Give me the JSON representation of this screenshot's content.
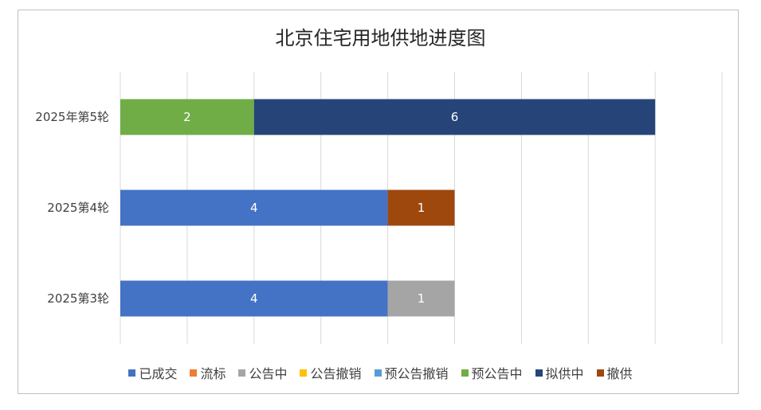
{
  "chart_data": {
    "type": "bar",
    "orientation": "horizontal",
    "stacked": true,
    "title": "北京住宅用地供地进度图",
    "categories": [
      "2025第3轮",
      "2025第4轮",
      "2025年第5轮"
    ],
    "series": [
      {
        "name": "已成交",
        "color": "#4472C4",
        "values": [
          4,
          4,
          0
        ]
      },
      {
        "name": "流标",
        "color": "#ED7D31",
        "values": [
          0,
          0,
          0
        ]
      },
      {
        "name": "公告中",
        "color": "#A5A5A5",
        "values": [
          1,
          0,
          0
        ]
      },
      {
        "name": "公告撤销",
        "color": "#FFC000",
        "values": [
          0,
          0,
          0
        ]
      },
      {
        "name": "预公告撤销",
        "color": "#5B9BD5",
        "values": [
          0,
          0,
          0
        ]
      },
      {
        "name": "预公告中",
        "color": "#70AD47",
        "values": [
          0,
          0,
          2
        ]
      },
      {
        "name": "拟供中",
        "color": "#264478",
        "values": [
          0,
          0,
          6
        ]
      },
      {
        "name": "撤供",
        "color": "#9E480E",
        "values": [
          0,
          1,
          0
        ]
      }
    ],
    "xlim": [
      0,
      9
    ],
    "grid": true,
    "legend_position": "bottom"
  }
}
